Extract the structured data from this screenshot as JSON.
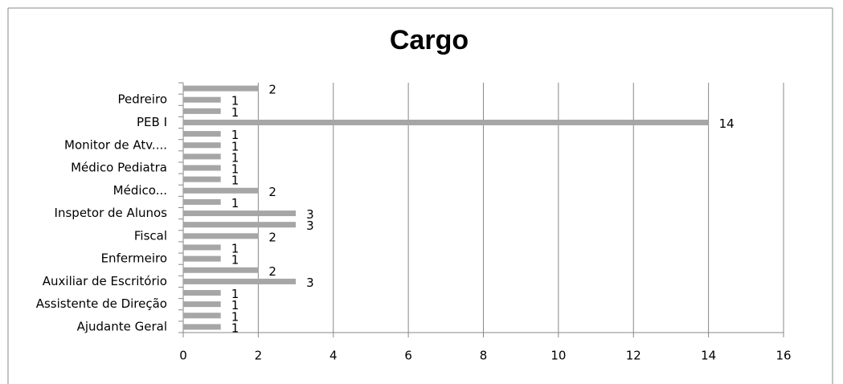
{
  "chart_data": {
    "type": "bar",
    "orientation": "horizontal",
    "title": "Cargo",
    "categories": [
      "Ajudante Geral",
      null,
      "Assistente de Direção",
      null,
      "Auxiliar de Escritório",
      null,
      "Enfermeiro",
      null,
      "Fiscal",
      null,
      "Inspetor de Alunos",
      null,
      "Médico...",
      null,
      "Médico Pediatra",
      null,
      "Monitor de Atv....",
      null,
      "PEB I",
      null,
      "Pedreiro",
      null
    ],
    "values": [
      1,
      1,
      1,
      1,
      3,
      2,
      1,
      1,
      2,
      3,
      3,
      1,
      2,
      1,
      1,
      1,
      1,
      1,
      14,
      1,
      1,
      2
    ],
    "color": "#a6a6a6",
    "xlim": [
      0,
      16
    ],
    "xticks": [
      0,
      2,
      4,
      6,
      8,
      10,
      12,
      14,
      16
    ],
    "grid": true
  }
}
